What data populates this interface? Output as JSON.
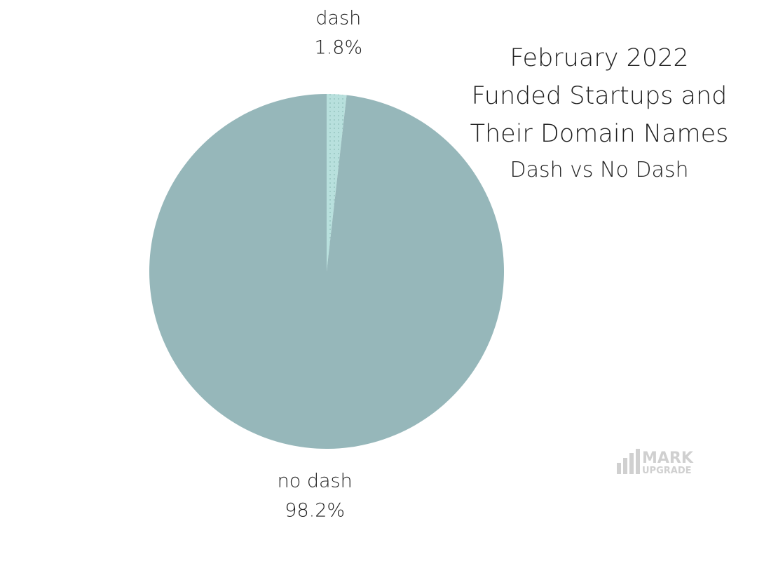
{
  "chart_data": {
    "type": "pie",
    "title": "February 2022 Funded Startups and Their Domain Names",
    "title_lines": [
      "February 2022",
      "Funded Startups and",
      "Their Domain Names"
    ],
    "subtitle": "Dash vs No Dash",
    "slices": [
      {
        "label": "dash",
        "value": 1.8,
        "value_text": "1.8%",
        "color": "#b8e0dd",
        "pattern": "dotted"
      },
      {
        "label": "no dash",
        "value": 98.2,
        "value_text": "98.2%",
        "color": "#96b7ba"
      }
    ],
    "start_angle": "12 o'clock, clockwise"
  },
  "watermark": {
    "line1": "MARK",
    "line2": "UPGRADE",
    "color": "#d0d0d0"
  }
}
